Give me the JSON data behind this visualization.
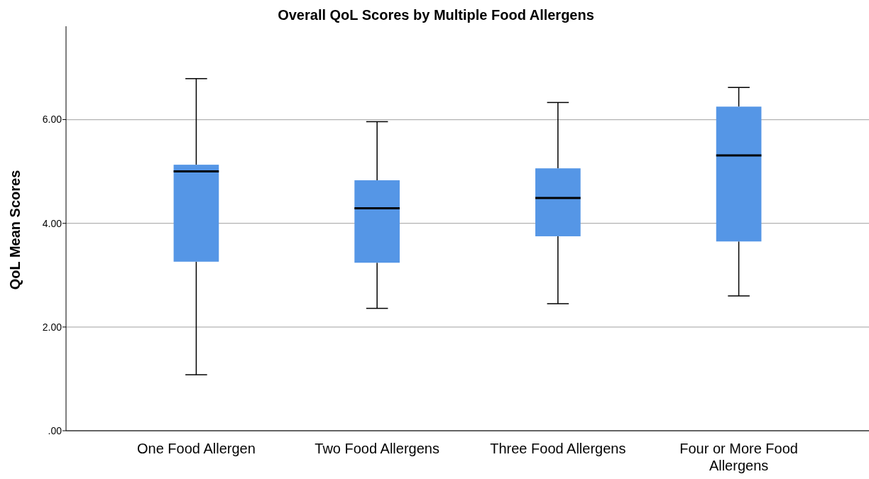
{
  "chart_data": {
    "type": "box",
    "title": "Overall QoL Scores by Multiple Food Allergens",
    "ylabel": "QoL Mean Scores",
    "categories": [
      "One Food Allergen",
      "Two Food Allergens",
      "Three Food Allergens",
      "Four or More Food Allergens"
    ],
    "boxes": [
      {
        "low": 1.08,
        "q1": 3.26,
        "median": 5.0,
        "q3": 5.13,
        "high": 6.79
      },
      {
        "low": 2.36,
        "q1": 3.24,
        "median": 4.29,
        "q3": 4.83,
        "high": 5.96
      },
      {
        "low": 2.45,
        "q1": 3.75,
        "median": 4.49,
        "q3": 5.06,
        "high": 6.33
      },
      {
        "low": 2.6,
        "q1": 3.65,
        "median": 5.31,
        "q3": 6.25,
        "high": 6.62
      }
    ],
    "color": "#5596e6",
    "ylim": [
      0,
      7.8
    ],
    "yticks": [
      {
        "value": 0,
        "label": ".00"
      },
      {
        "value": 2,
        "label": "2.00"
      },
      {
        "value": 4,
        "label": "4.00"
      },
      {
        "value": 6,
        "label": "6.00"
      }
    ],
    "grid": "y"
  }
}
